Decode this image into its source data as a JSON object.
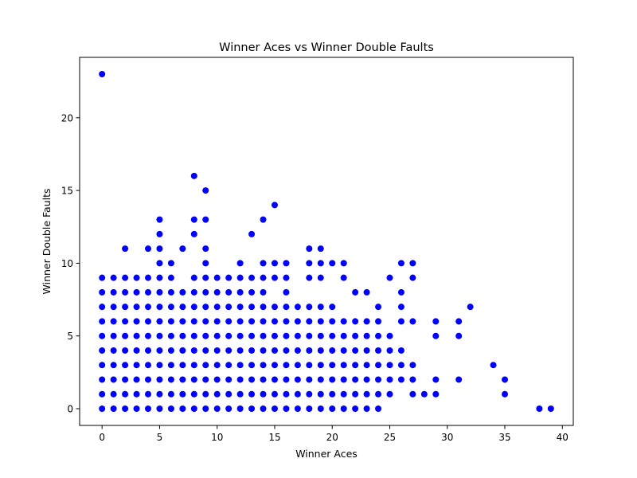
{
  "chart_data": {
    "type": "scatter",
    "title": "Winner Aces vs Winner Double Faults",
    "xlabel": "Winner Aces",
    "ylabel": "Winner Double Faults",
    "xlim": [
      -1.95,
      40.95
    ],
    "ylim": [
      -1.15,
      24.15
    ],
    "xticks": [
      0,
      5,
      10,
      15,
      20,
      25,
      30,
      35,
      40
    ],
    "yticks": [
      0,
      5,
      10,
      15,
      20
    ],
    "grid": false,
    "marker_color": "#0000ff",
    "points": [
      [
        0,
        23
      ],
      [
        0,
        0
      ],
      [
        0,
        1
      ],
      [
        0,
        2
      ],
      [
        0,
        3
      ],
      [
        0,
        4
      ],
      [
        0,
        5
      ],
      [
        0,
        6
      ],
      [
        0,
        7
      ],
      [
        0,
        8
      ],
      [
        0,
        9
      ],
      [
        1,
        0
      ],
      [
        1,
        1
      ],
      [
        1,
        2
      ],
      [
        1,
        3
      ],
      [
        1,
        4
      ],
      [
        1,
        5
      ],
      [
        1,
        6
      ],
      [
        1,
        7
      ],
      [
        1,
        8
      ],
      [
        1,
        9
      ],
      [
        2,
        0
      ],
      [
        2,
        1
      ],
      [
        2,
        2
      ],
      [
        2,
        3
      ],
      [
        2,
        4
      ],
      [
        2,
        5
      ],
      [
        2,
        6
      ],
      [
        2,
        7
      ],
      [
        2,
        8
      ],
      [
        2,
        9
      ],
      [
        2,
        11
      ],
      [
        3,
        0
      ],
      [
        3,
        1
      ],
      [
        3,
        2
      ],
      [
        3,
        3
      ],
      [
        3,
        4
      ],
      [
        3,
        5
      ],
      [
        3,
        6
      ],
      [
        3,
        7
      ],
      [
        3,
        8
      ],
      [
        3,
        9
      ],
      [
        4,
        0
      ],
      [
        4,
        1
      ],
      [
        4,
        2
      ],
      [
        4,
        3
      ],
      [
        4,
        4
      ],
      [
        4,
        5
      ],
      [
        4,
        6
      ],
      [
        4,
        7
      ],
      [
        4,
        8
      ],
      [
        4,
        9
      ],
      [
        4,
        11
      ],
      [
        5,
        0
      ],
      [
        5,
        1
      ],
      [
        5,
        2
      ],
      [
        5,
        3
      ],
      [
        5,
        4
      ],
      [
        5,
        5
      ],
      [
        5,
        6
      ],
      [
        5,
        7
      ],
      [
        5,
        8
      ],
      [
        5,
        9
      ],
      [
        5,
        10
      ],
      [
        5,
        11
      ],
      [
        5,
        12
      ],
      [
        5,
        13
      ],
      [
        6,
        0
      ],
      [
        6,
        1
      ],
      [
        6,
        2
      ],
      [
        6,
        3
      ],
      [
        6,
        4
      ],
      [
        6,
        5
      ],
      [
        6,
        6
      ],
      [
        6,
        7
      ],
      [
        6,
        8
      ],
      [
        6,
        9
      ],
      [
        6,
        10
      ],
      [
        7,
        0
      ],
      [
        7,
        1
      ],
      [
        7,
        2
      ],
      [
        7,
        3
      ],
      [
        7,
        4
      ],
      [
        7,
        5
      ],
      [
        7,
        6
      ],
      [
        7,
        7
      ],
      [
        7,
        8
      ],
      [
        7,
        11
      ],
      [
        8,
        0
      ],
      [
        8,
        1
      ],
      [
        8,
        2
      ],
      [
        8,
        3
      ],
      [
        8,
        4
      ],
      [
        8,
        5
      ],
      [
        8,
        6
      ],
      [
        8,
        7
      ],
      [
        8,
        8
      ],
      [
        8,
        9
      ],
      [
        8,
        12
      ],
      [
        8,
        13
      ],
      [
        8,
        16
      ],
      [
        9,
        0
      ],
      [
        9,
        1
      ],
      [
        9,
        2
      ],
      [
        9,
        3
      ],
      [
        9,
        4
      ],
      [
        9,
        5
      ],
      [
        9,
        6
      ],
      [
        9,
        7
      ],
      [
        9,
        8
      ],
      [
        9,
        9
      ],
      [
        9,
        10
      ],
      [
        9,
        11
      ],
      [
        9,
        13
      ],
      [
        9,
        15
      ],
      [
        10,
        0
      ],
      [
        10,
        1
      ],
      [
        10,
        2
      ],
      [
        10,
        3
      ],
      [
        10,
        4
      ],
      [
        10,
        5
      ],
      [
        10,
        6
      ],
      [
        10,
        7
      ],
      [
        10,
        8
      ],
      [
        10,
        9
      ],
      [
        11,
        0
      ],
      [
        11,
        1
      ],
      [
        11,
        2
      ],
      [
        11,
        3
      ],
      [
        11,
        4
      ],
      [
        11,
        5
      ],
      [
        11,
        6
      ],
      [
        11,
        7
      ],
      [
        11,
        8
      ],
      [
        11,
        9
      ],
      [
        12,
        0
      ],
      [
        12,
        1
      ],
      [
        12,
        2
      ],
      [
        12,
        3
      ],
      [
        12,
        4
      ],
      [
        12,
        5
      ],
      [
        12,
        6
      ],
      [
        12,
        7
      ],
      [
        12,
        8
      ],
      [
        12,
        9
      ],
      [
        12,
        10
      ],
      [
        13,
        0
      ],
      [
        13,
        1
      ],
      [
        13,
        2
      ],
      [
        13,
        3
      ],
      [
        13,
        4
      ],
      [
        13,
        5
      ],
      [
        13,
        6
      ],
      [
        13,
        7
      ],
      [
        13,
        8
      ],
      [
        13,
        9
      ],
      [
        13,
        12
      ],
      [
        14,
        0
      ],
      [
        14,
        1
      ],
      [
        14,
        2
      ],
      [
        14,
        3
      ],
      [
        14,
        4
      ],
      [
        14,
        5
      ],
      [
        14,
        6
      ],
      [
        14,
        7
      ],
      [
        14,
        8
      ],
      [
        14,
        9
      ],
      [
        14,
        10
      ],
      [
        14,
        13
      ],
      [
        15,
        0
      ],
      [
        15,
        1
      ],
      [
        15,
        2
      ],
      [
        15,
        3
      ],
      [
        15,
        4
      ],
      [
        15,
        5
      ],
      [
        15,
        6
      ],
      [
        15,
        7
      ],
      [
        15,
        9
      ],
      [
        15,
        10
      ],
      [
        15,
        14
      ],
      [
        16,
        0
      ],
      [
        16,
        1
      ],
      [
        16,
        2
      ],
      [
        16,
        3
      ],
      [
        16,
        4
      ],
      [
        16,
        5
      ],
      [
        16,
        6
      ],
      [
        16,
        7
      ],
      [
        16,
        8
      ],
      [
        16,
        9
      ],
      [
        16,
        10
      ],
      [
        17,
        0
      ],
      [
        17,
        1
      ],
      [
        17,
        2
      ],
      [
        17,
        3
      ],
      [
        17,
        4
      ],
      [
        17,
        5
      ],
      [
        17,
        6
      ],
      [
        17,
        7
      ],
      [
        18,
        0
      ],
      [
        18,
        1
      ],
      [
        18,
        2
      ],
      [
        18,
        3
      ],
      [
        18,
        4
      ],
      [
        18,
        5
      ],
      [
        18,
        6
      ],
      [
        18,
        7
      ],
      [
        18,
        9
      ],
      [
        18,
        10
      ],
      [
        18,
        11
      ],
      [
        19,
        0
      ],
      [
        19,
        1
      ],
      [
        19,
        2
      ],
      [
        19,
        3
      ],
      [
        19,
        4
      ],
      [
        19,
        5
      ],
      [
        19,
        6
      ],
      [
        19,
        7
      ],
      [
        19,
        9
      ],
      [
        19,
        10
      ],
      [
        19,
        11
      ],
      [
        20,
        0
      ],
      [
        20,
        1
      ],
      [
        20,
        2
      ],
      [
        20,
        3
      ],
      [
        20,
        4
      ],
      [
        20,
        5
      ],
      [
        20,
        6
      ],
      [
        20,
        7
      ],
      [
        20,
        10
      ],
      [
        21,
        0
      ],
      [
        21,
        1
      ],
      [
        21,
        2
      ],
      [
        21,
        3
      ],
      [
        21,
        4
      ],
      [
        21,
        5
      ],
      [
        21,
        6
      ],
      [
        21,
        9
      ],
      [
        21,
        10
      ],
      [
        22,
        0
      ],
      [
        22,
        1
      ],
      [
        22,
        2
      ],
      [
        22,
        3
      ],
      [
        22,
        4
      ],
      [
        22,
        5
      ],
      [
        22,
        6
      ],
      [
        22,
        8
      ],
      [
        23,
        0
      ],
      [
        23,
        1
      ],
      [
        23,
        2
      ],
      [
        23,
        3
      ],
      [
        23,
        4
      ],
      [
        23,
        5
      ],
      [
        23,
        6
      ],
      [
        23,
        8
      ],
      [
        24,
        0
      ],
      [
        24,
        1
      ],
      [
        24,
        2
      ],
      [
        24,
        3
      ],
      [
        24,
        4
      ],
      [
        24,
        5
      ],
      [
        24,
        6
      ],
      [
        24,
        7
      ],
      [
        25,
        1
      ],
      [
        25,
        2
      ],
      [
        25,
        3
      ],
      [
        25,
        4
      ],
      [
        25,
        5
      ],
      [
        25,
        9
      ],
      [
        26,
        2
      ],
      [
        26,
        3
      ],
      [
        26,
        4
      ],
      [
        26,
        6
      ],
      [
        26,
        7
      ],
      [
        26,
        8
      ],
      [
        26,
        10
      ],
      [
        27,
        1
      ],
      [
        27,
        2
      ],
      [
        27,
        3
      ],
      [
        27,
        6
      ],
      [
        27,
        9
      ],
      [
        27,
        10
      ],
      [
        28,
        1
      ],
      [
        29,
        1
      ],
      [
        29,
        2
      ],
      [
        29,
        5
      ],
      [
        29,
        6
      ],
      [
        31,
        2
      ],
      [
        31,
        5
      ],
      [
        31,
        6
      ],
      [
        32,
        7
      ],
      [
        34,
        3
      ],
      [
        35,
        1
      ],
      [
        35,
        2
      ],
      [
        38,
        0
      ],
      [
        39,
        0
      ]
    ]
  }
}
